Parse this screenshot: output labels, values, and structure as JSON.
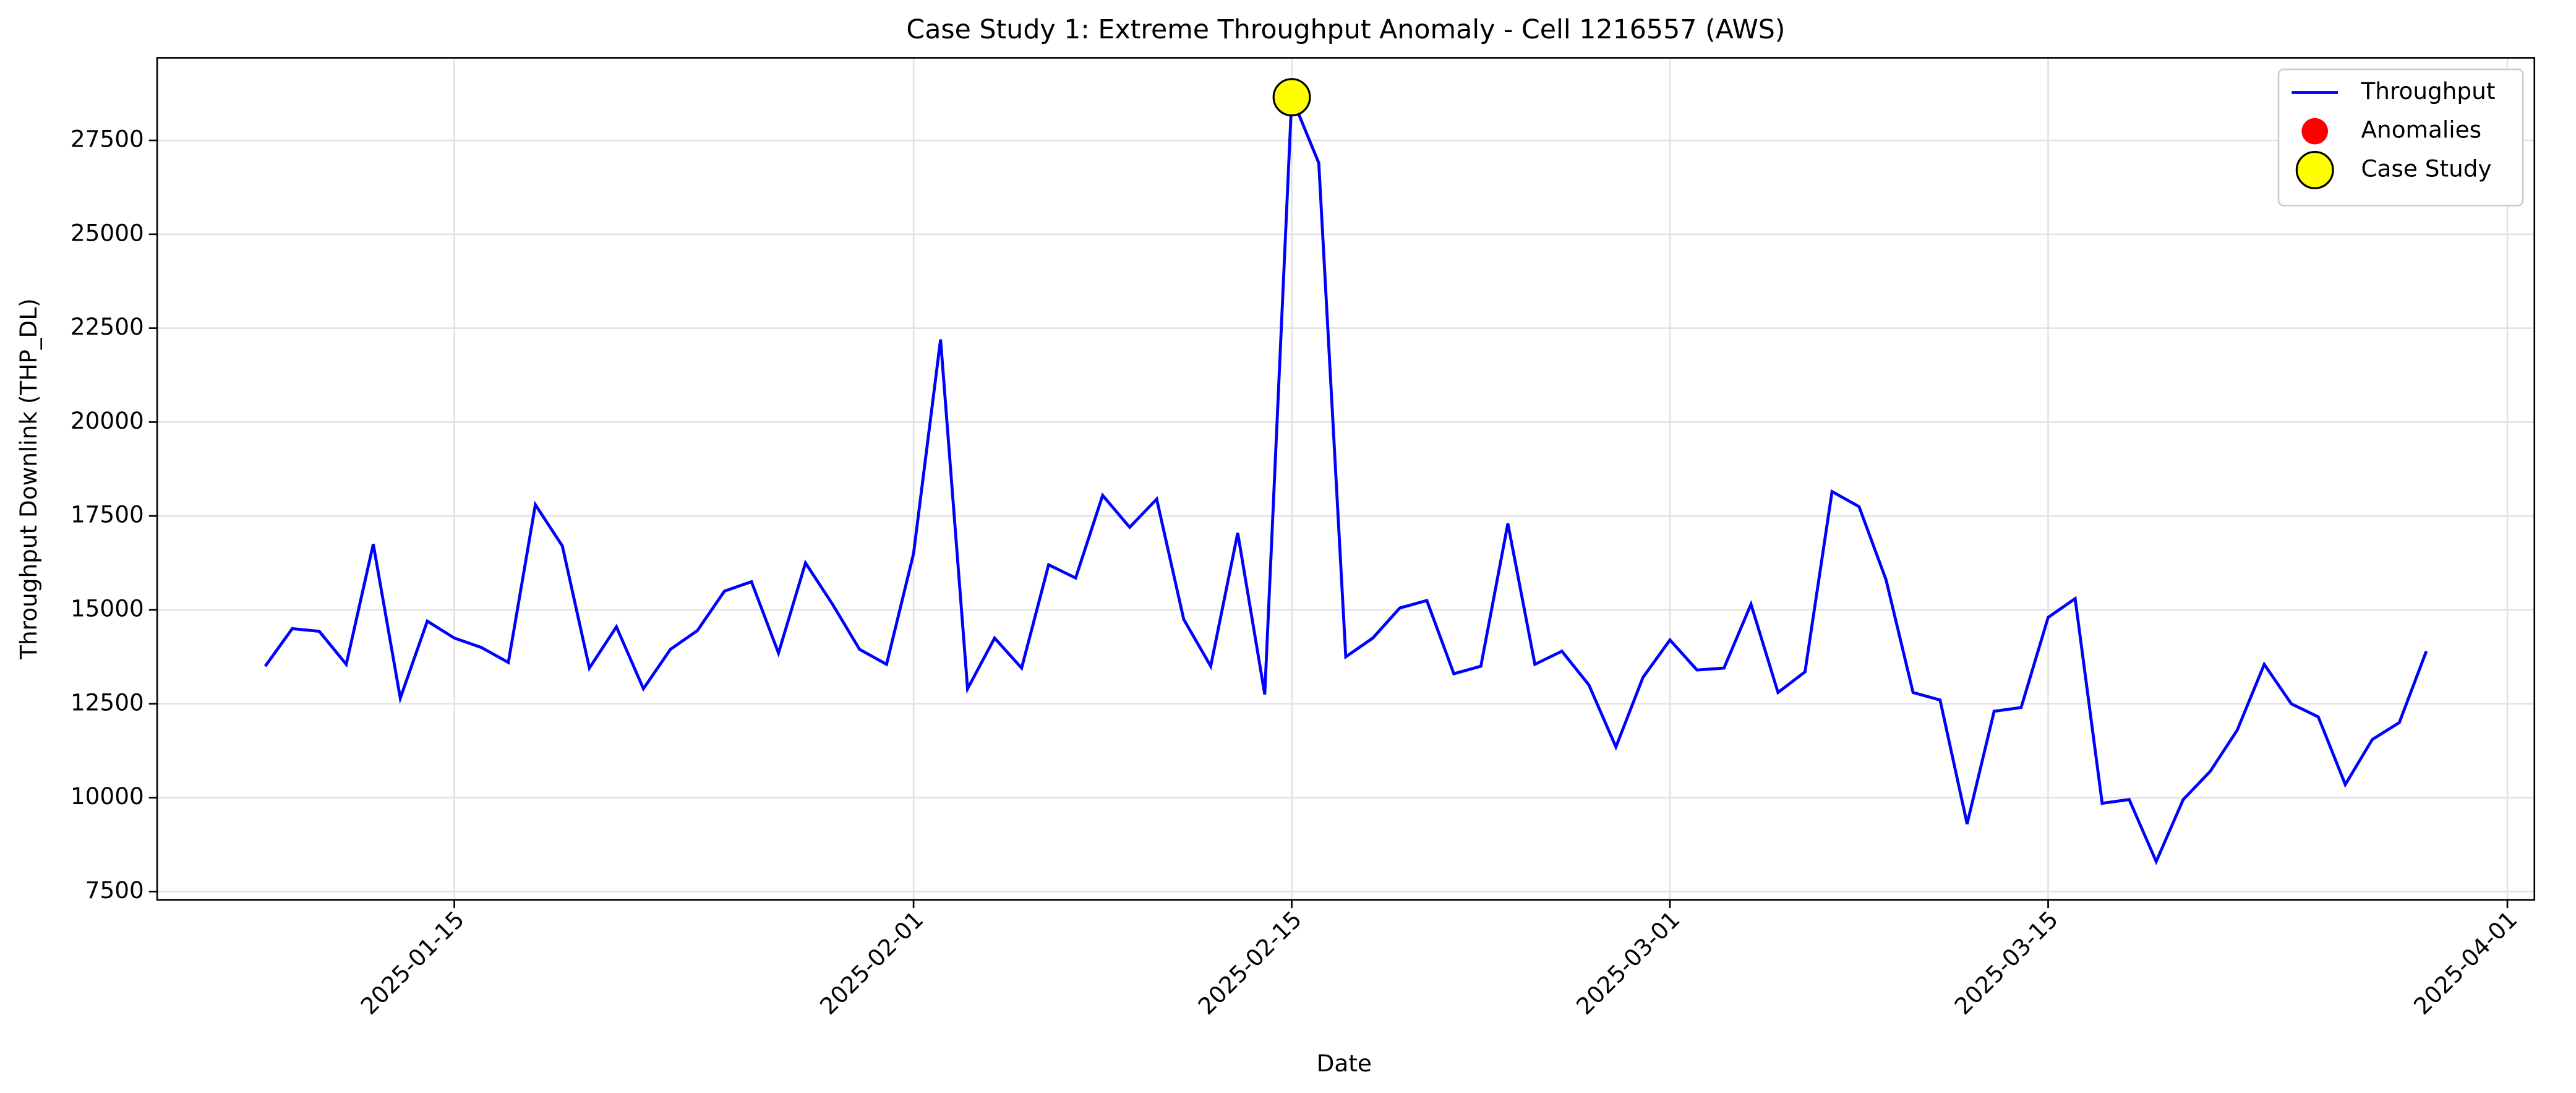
{
  "chart_data": {
    "type": "line",
    "title": "Case Study 1: Extreme Throughput Anomaly - Cell 1216557 (AWS)",
    "x_label": "Date",
    "y_label": "Throughput Downlink (THP_DL)",
    "xlim": [
      "2025-01-04",
      "2025-04-02"
    ],
    "xticks": [
      "2025-01-15",
      "2025-02-01",
      "2025-02-15",
      "2025-03-01",
      "2025-03-15",
      "2025-04-01"
    ],
    "ylim": [
      7280,
      29700
    ],
    "yticks": [
      7500,
      10000,
      12500,
      15000,
      17500,
      20000,
      22500,
      25000,
      27500
    ],
    "grid": true,
    "legend": "upper right",
    "series": [
      {
        "name": "Throughput",
        "type": "line",
        "color": "#0000ff",
        "x": [
          "2025-01-08",
          "2025-01-09",
          "2025-01-10",
          "2025-01-11",
          "2025-01-12",
          "2025-01-13",
          "2025-01-14",
          "2025-01-15",
          "2025-01-16",
          "2025-01-17",
          "2025-01-18",
          "2025-01-19",
          "2025-01-20",
          "2025-01-21",
          "2025-01-22",
          "2025-01-23",
          "2025-01-24",
          "2025-01-25",
          "2025-01-26",
          "2025-01-27",
          "2025-01-28",
          "2025-01-29",
          "2025-01-30",
          "2025-01-31",
          "2025-02-01",
          "2025-02-02",
          "2025-02-03",
          "2025-02-04",
          "2025-02-05",
          "2025-02-06",
          "2025-02-07",
          "2025-02-08",
          "2025-02-09",
          "2025-02-10",
          "2025-02-11",
          "2025-02-12",
          "2025-02-13",
          "2025-02-14",
          "2025-02-15",
          "2025-02-16",
          "2025-02-17",
          "2025-02-18",
          "2025-02-19",
          "2025-02-20",
          "2025-02-21",
          "2025-02-22",
          "2025-02-23",
          "2025-02-24",
          "2025-02-25",
          "2025-02-26",
          "2025-02-27",
          "2025-02-28",
          "2025-03-01",
          "2025-03-02",
          "2025-03-03",
          "2025-03-04",
          "2025-03-05",
          "2025-03-06",
          "2025-03-07",
          "2025-03-08",
          "2025-03-09",
          "2025-03-10",
          "2025-03-11",
          "2025-03-12",
          "2025-03-13",
          "2025-03-14",
          "2025-03-15",
          "2025-03-16",
          "2025-03-17",
          "2025-03-18",
          "2025-03-19",
          "2025-03-20",
          "2025-03-21",
          "2025-03-22",
          "2025-03-23",
          "2025-03-24",
          "2025-03-25",
          "2025-03-26",
          "2025-03-27",
          "2025-03-28",
          "2025-03-29"
        ],
        "values": [
          13500,
          14500,
          14430,
          13550,
          16750,
          12650,
          14700,
          14250,
          14000,
          13600,
          17800,
          16700,
          13450,
          14550,
          12900,
          13950,
          14450,
          15500,
          15750,
          13850,
          16250,
          15150,
          13950,
          13550,
          16500,
          22200,
          12900,
          14250,
          13450,
          16200,
          15850,
          18050,
          17200,
          17950,
          14750,
          13500,
          17050,
          12750,
          28650,
          26900,
          13750,
          14250,
          15050,
          15250,
          13300,
          13500,
          17300,
          13550,
          13900,
          13000,
          11350,
          13200,
          14200,
          13400,
          13450,
          15150,
          12800,
          13350,
          18150,
          17750,
          15800,
          12800,
          12600,
          9300,
          12300,
          12400,
          14800,
          15300,
          9850,
          9950,
          8300,
          9950,
          10700,
          11800,
          13550,
          12500,
          12150,
          10350,
          11550,
          12000,
          13900
        ]
      },
      {
        "name": "Anomalies",
        "type": "scatter",
        "color": "#ff0000",
        "x": [
          "2025-02-15"
        ],
        "values": [
          28650
        ]
      },
      {
        "name": "Case Study",
        "type": "scatter",
        "color": "#ffff00",
        "edgecolor": "#000000",
        "x": [
          "2025-02-15"
        ],
        "values": [
          28650
        ]
      }
    ]
  }
}
